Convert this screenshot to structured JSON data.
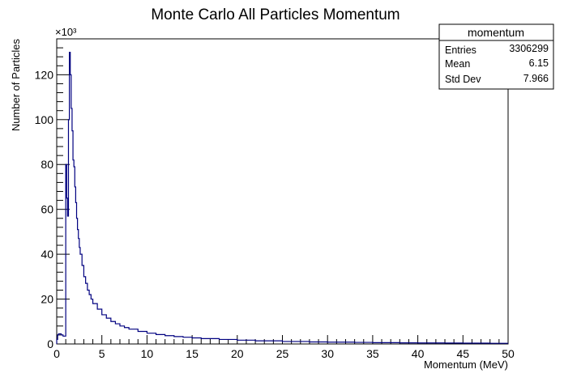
{
  "chart_data": {
    "type": "histogram",
    "title": "Monte Carlo All Particles Momentum",
    "xlabel": "Momentum (MeV)",
    "ylabel": "Number of Particles",
    "y_multiplier": "×10³",
    "xlim": [
      0,
      50
    ],
    "ylim": [
      0,
      136
    ],
    "xticks": [
      0,
      5,
      10,
      15,
      20,
      25,
      30,
      35,
      40,
      45,
      50
    ],
    "yticks": [
      0,
      20,
      40,
      60,
      80,
      100,
      120
    ],
    "line_color": "#000080",
    "grid": false,
    "x": [
      0.0,
      0.1,
      0.2,
      0.3,
      0.4,
      0.5,
      0.6,
      0.7,
      0.8,
      0.9,
      1.0,
      1.1,
      1.2,
      1.3,
      1.4,
      1.5,
      1.6,
      1.7,
      1.8,
      1.9,
      2.0,
      2.1,
      2.2,
      2.3,
      2.4,
      2.5,
      2.6,
      2.8,
      3.0,
      3.2,
      3.4,
      3.6,
      3.8,
      4.0,
      4.5,
      5.0,
      5.5,
      6.0,
      6.5,
      7.0,
      7.5,
      8.0,
      9.0,
      10.0,
      11.0,
      12.0,
      13.0,
      14.0,
      15.0,
      16.0,
      18.0,
      20.0,
      22.0,
      25.0,
      28.0,
      30.0,
      33.0,
      35.0,
      38.0,
      40.0,
      43.0,
      45.0,
      48.0,
      50.0
    ],
    "y": [
      2.0,
      4.0,
      4.5,
      4.5,
      4.5,
      4.0,
      4.0,
      3.5,
      3.5,
      3.5,
      80.0,
      65.0,
      57.0,
      100.0,
      130.0,
      120.0,
      105.0,
      95.0,
      82.0,
      79.0,
      70.0,
      63.0,
      56.0,
      51.0,
      47.0,
      43.0,
      40.0,
      35.0,
      30.0,
      27.0,
      24.0,
      22.0,
      20.0,
      18.0,
      15.5,
      13.0,
      11.5,
      10.0,
      9.0,
      8.0,
      7.3,
      6.6,
      5.6,
      4.8,
      4.2,
      3.7,
      3.3,
      3.0,
      2.7,
      2.4,
      2.0,
      1.7,
      1.4,
      1.1,
      0.9,
      0.8,
      0.7,
      0.6,
      0.5,
      0.45,
      0.4,
      0.35,
      0.3,
      0.3
    ]
  },
  "stats_box": {
    "title": "momentum",
    "rows": [
      {
        "label": "Entries",
        "value": "3306299"
      },
      {
        "label": "Mean",
        "value": "6.15"
      },
      {
        "label": "Std Dev",
        "value": "7.966"
      }
    ]
  }
}
